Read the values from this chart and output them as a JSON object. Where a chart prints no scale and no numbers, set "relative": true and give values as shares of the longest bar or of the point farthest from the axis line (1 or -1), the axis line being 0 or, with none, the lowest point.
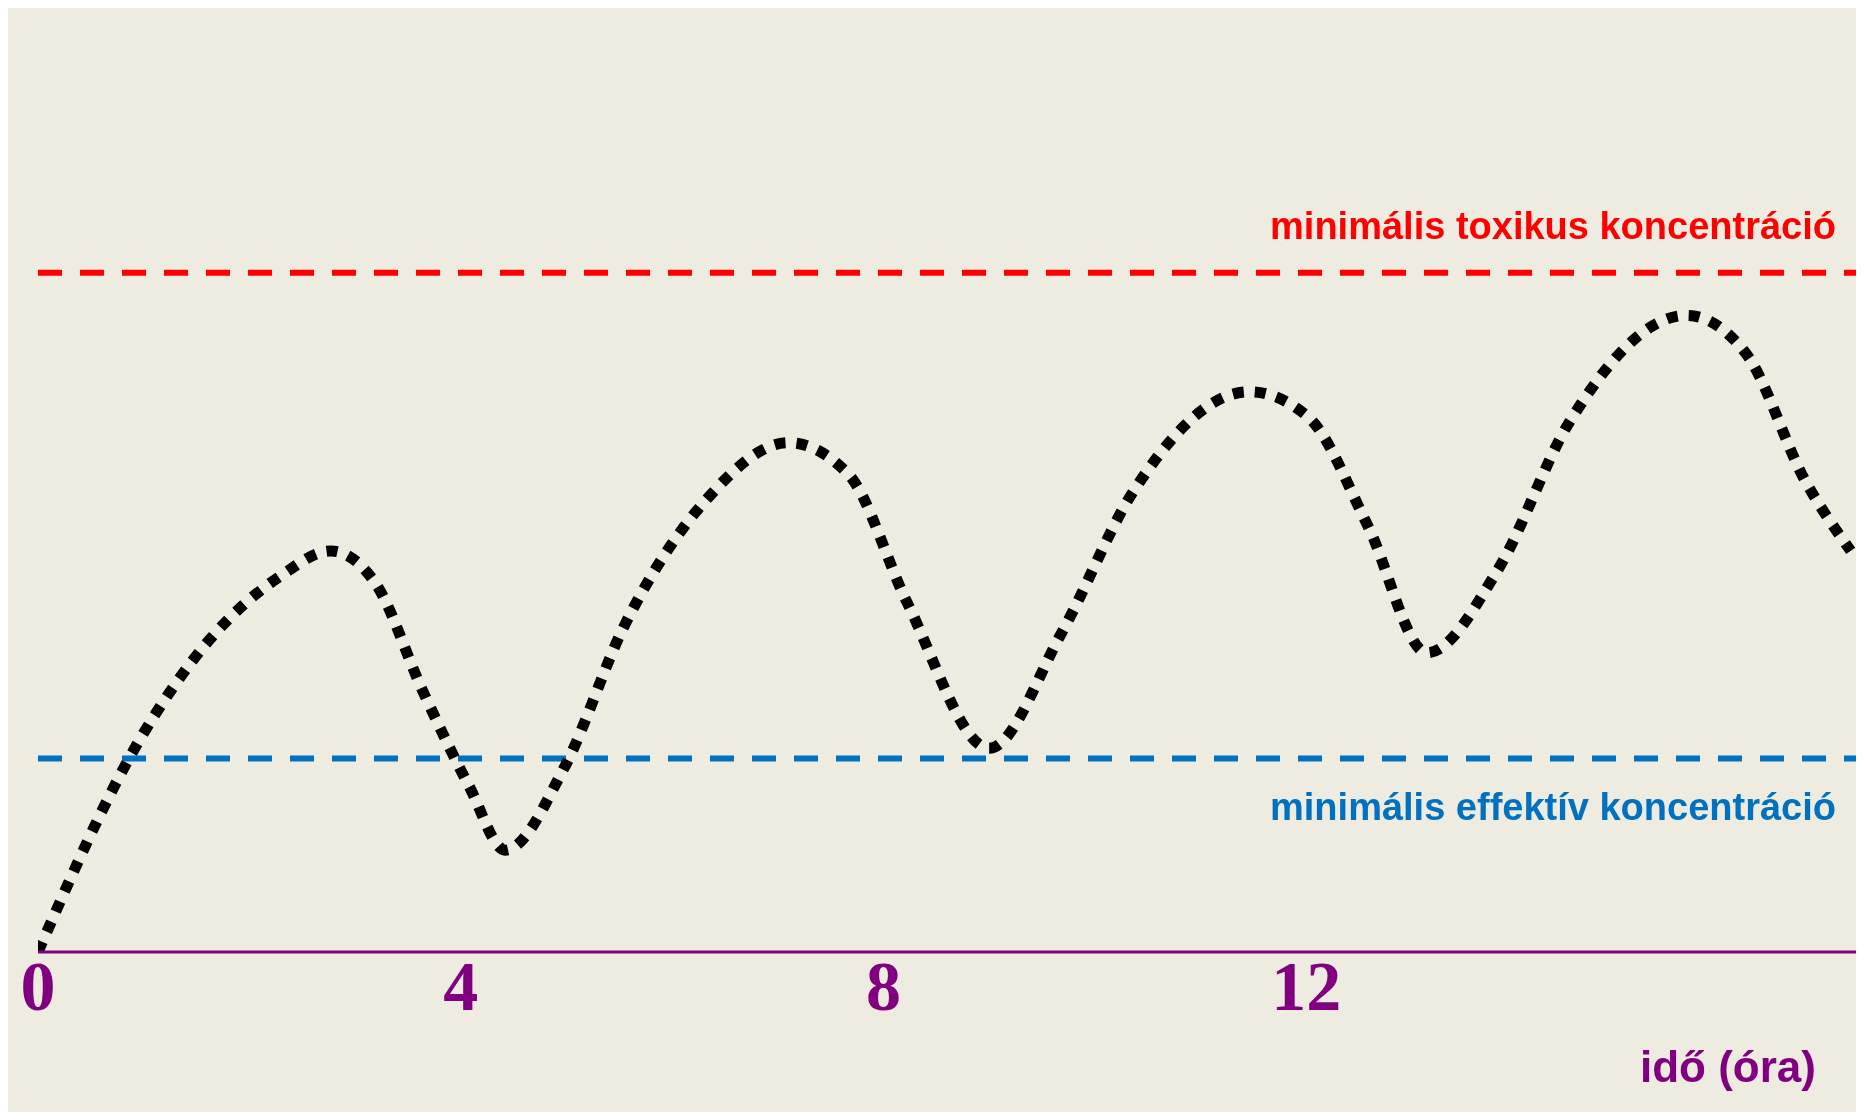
{
  "chart_data": {
    "type": "line",
    "relative": true,
    "xlabel": "idő (óra)",
    "xlim": [
      0,
      17.2
    ],
    "xticks": [
      0,
      4,
      8,
      12
    ],
    "line_style": "dotted",
    "marker": "none",
    "grid": false,
    "legend": false,
    "series": [
      {
        "color": "#000000",
        "x": [
          0,
          0.95,
          1.62,
          2.29,
          2.77,
          3.19,
          3.64,
          4.08,
          4.42,
          4.98,
          5.54,
          6.32,
          7.1,
          7.67,
          8.22,
          9.0,
          9.68,
          10.35,
          11.46,
          12.02,
          12.58,
          13.14,
          13.81,
          14.48,
          15.6,
          16.16,
          16.72,
          17.15
        ],
        "values": [
          0,
          0.33,
          0.49,
          0.59,
          0.63,
          0.58,
          0.41,
          0.26,
          0.16,
          0.29,
          0.51,
          0.71,
          0.8,
          0.75,
          0.55,
          0.32,
          0.5,
          0.72,
          0.88,
          0.84,
          0.67,
          0.47,
          0.6,
          0.83,
          1,
          0.94,
          0.74,
          0.63
        ]
      }
    ],
    "ref_lines": [
      {
        "axis": "y",
        "value": 1.067,
        "label": "minimális toxikus koncentráció",
        "color": "#ff0000",
        "line_style": "dashed"
      },
      {
        "axis": "y",
        "value": 0.304,
        "label": "minimális effektív koncentráció",
        "color": "#0070c0",
        "line_style": "dashed"
      }
    ]
  }
}
